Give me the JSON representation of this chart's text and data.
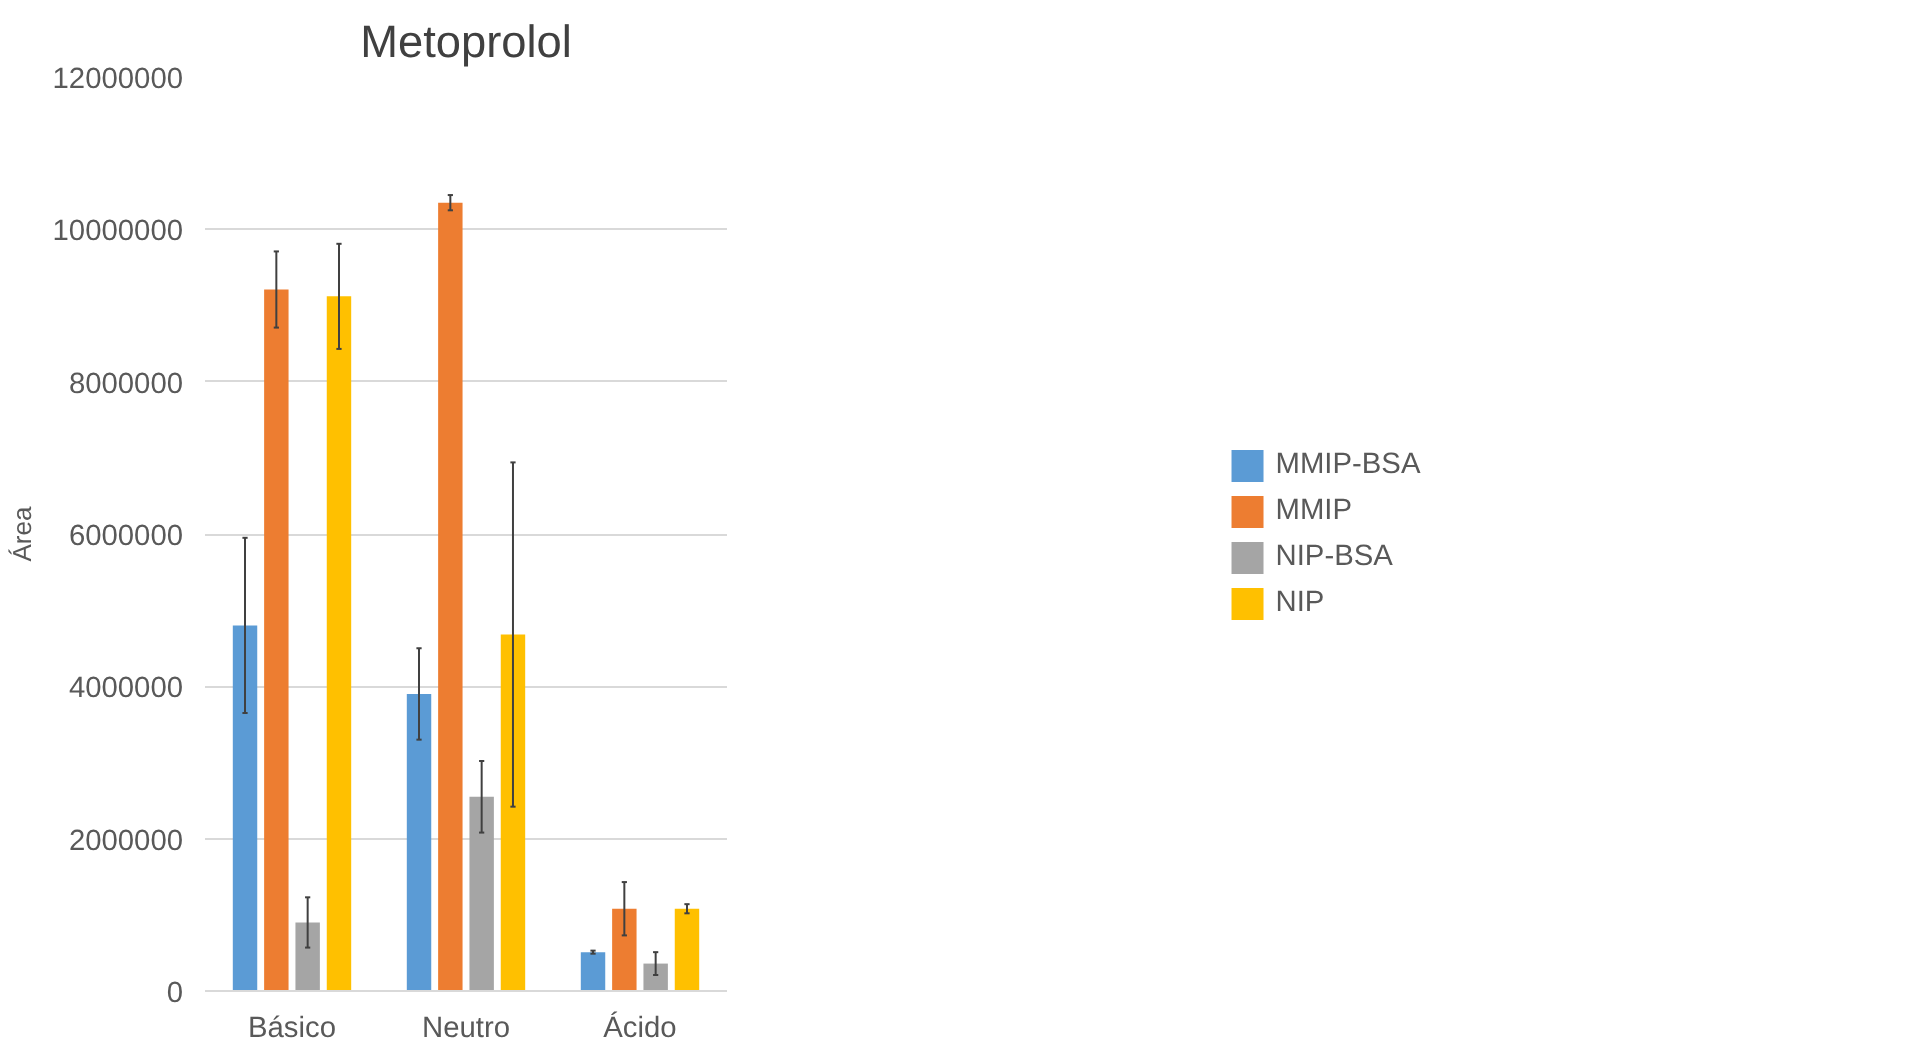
{
  "chart_data": {
    "type": "bar",
    "title": "Metoprolol",
    "ylabel": "Área",
    "categories": [
      "Básico",
      "Neutro",
      "Ácido"
    ],
    "series": [
      {
        "name": "MMIP-BSA",
        "color": "#5b9bd5",
        "values": [
          4800000,
          3900000,
          510000
        ],
        "errors": [
          1150000,
          600000,
          20000
        ]
      },
      {
        "name": "MMIP",
        "color": "#ed7d31",
        "values": [
          9210000,
          10350000,
          1080000
        ],
        "errors": [
          500000,
          100000,
          350000
        ]
      },
      {
        "name": "NIP-BSA",
        "color": "#a5a5a5",
        "values": [
          900000,
          2550000,
          360000
        ],
        "errors": [
          330000,
          470000,
          150000
        ]
      },
      {
        "name": "NIP",
        "color": "#ffc000",
        "values": [
          9120000,
          4680000,
          1080000
        ],
        "errors": [
          690000,
          2260000,
          60000
        ]
      }
    ],
    "ylim": [
      0,
      12000000
    ],
    "yticks": [
      0,
      2000000,
      4000000,
      6000000,
      8000000,
      10000000,
      12000000
    ],
    "grid": "y",
    "legend": "right"
  }
}
